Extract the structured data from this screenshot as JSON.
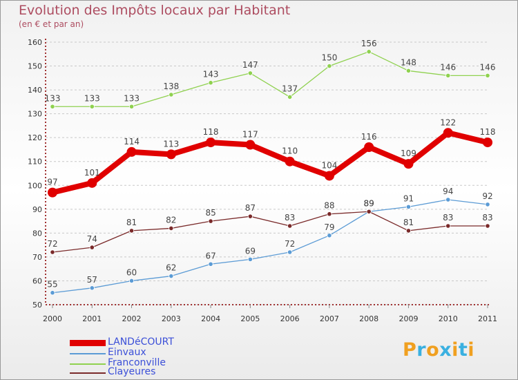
{
  "chart_data": {
    "type": "line",
    "title": "Evolution des Impôts locaux par Habitant",
    "subtitle": "(en € et par an)",
    "categories": [
      "2000",
      "2001",
      "2002",
      "2003",
      "2004",
      "2005",
      "2006",
      "2007",
      "2008",
      "2009",
      "2010",
      "2011"
    ],
    "ylim": [
      50,
      160
    ],
    "yticks": [
      50,
      60,
      70,
      80,
      90,
      100,
      110,
      120,
      130,
      140,
      150,
      160
    ],
    "grid": "horizontal dashed",
    "legend_position": "bottom-left",
    "series": [
      {
        "name": "LANDéCOURT",
        "color": "#e00000",
        "values": [
          97,
          101,
          114,
          113,
          118,
          117,
          110,
          104,
          116,
          109,
          122,
          118
        ]
      },
      {
        "name": "Einvaux",
        "color": "#5b9bd5",
        "values": [
          55,
          57,
          60,
          62,
          67,
          69,
          72,
          79,
          89,
          91,
          94,
          92
        ]
      },
      {
        "name": "Franconville",
        "color": "#8fd14f",
        "values": [
          133,
          133,
          133,
          138,
          143,
          147,
          137,
          150,
          156,
          148,
          146,
          146
        ]
      },
      {
        "name": "Clayeures",
        "color": "#7a2a2a",
        "values": [
          72,
          74,
          81,
          82,
          85,
          87,
          83,
          88,
          89,
          81,
          83,
          83
        ]
      }
    ]
  },
  "logo": {
    "letters": [
      "P",
      "r",
      "o",
      "x",
      "i",
      "t",
      "i"
    ],
    "colors": [
      "#f0a020",
      "#3ab0e0",
      "#f0a020",
      "#3ab0e0",
      "#f0a020",
      "#3ab0e0",
      "#f0a020"
    ]
  }
}
